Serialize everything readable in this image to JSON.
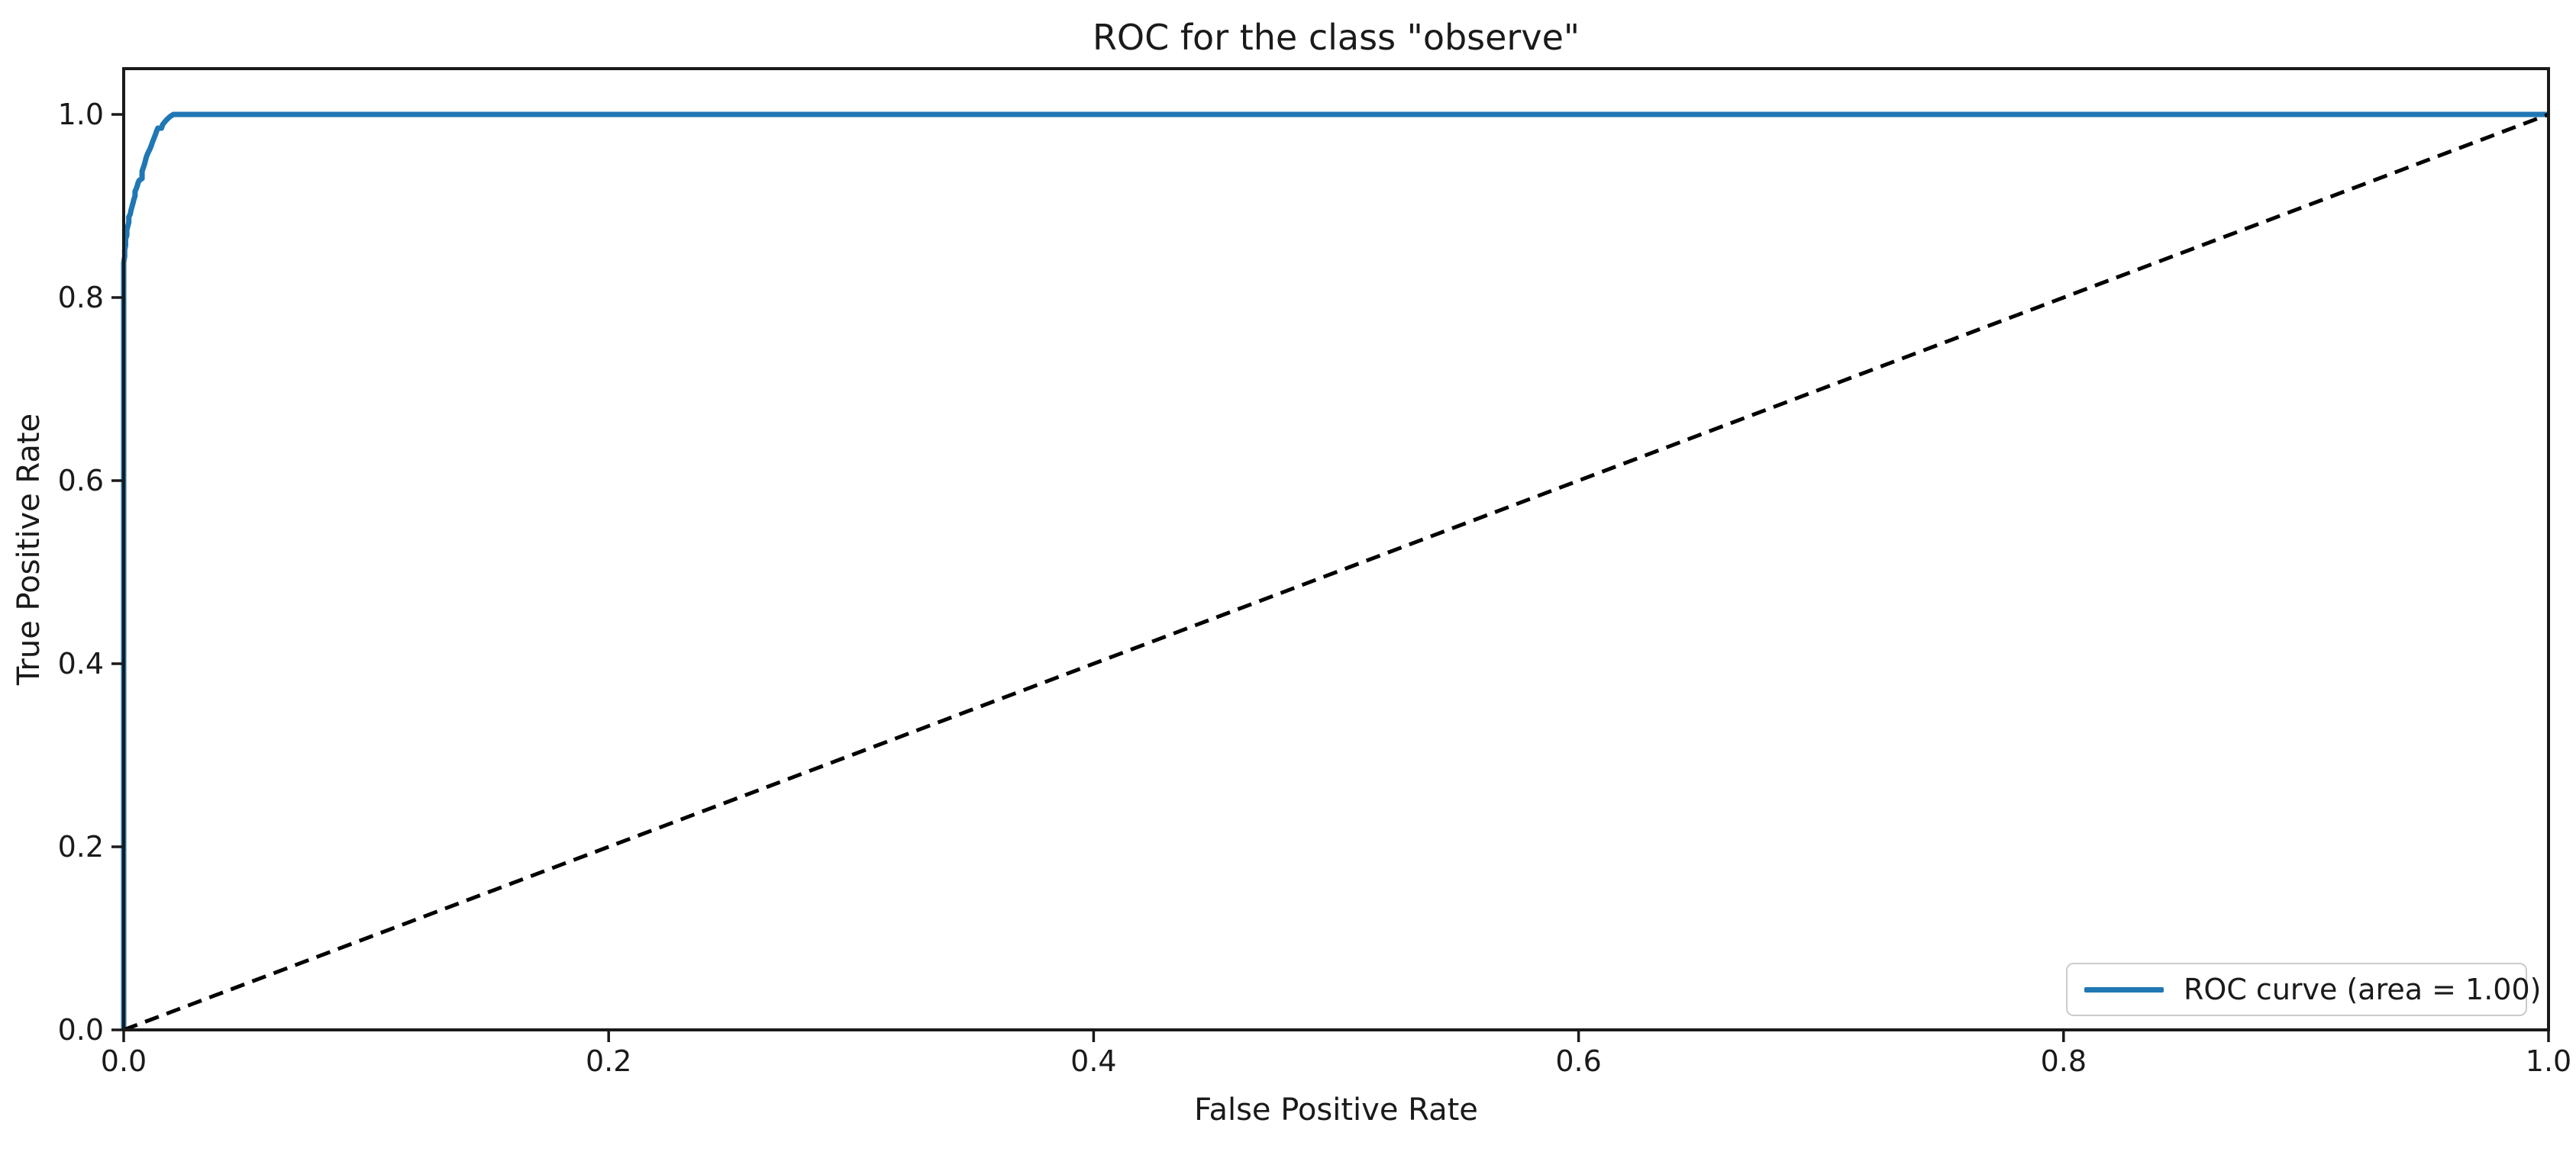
{
  "figure": {
    "background": "#ffffff",
    "text_color": "#1a1a1a",
    "spine_color": "#1a1a1a"
  },
  "chart_data": {
    "type": "line",
    "title": "ROC for the class \"observe\"",
    "xlabel": "False Positive Rate",
    "ylabel": "True Positive Rate",
    "xlim": [
      0.0,
      1.0
    ],
    "ylim": [
      0.0,
      1.05
    ],
    "xtick_labels": [
      "0.0",
      "0.2",
      "0.4",
      "0.6",
      "0.8",
      "1.0"
    ],
    "ytick_labels": [
      "0.0",
      "0.2",
      "0.4",
      "0.6",
      "0.8",
      "1.0"
    ],
    "grid": false,
    "legend": {
      "position": "lower right",
      "entries": [
        {
          "label": "ROC curve (area = 1.00)",
          "color": "#1f77b4",
          "line_style": "solid"
        }
      ]
    },
    "series": [
      {
        "id": "roc-curve",
        "name": "ROC curve",
        "auc": 1.0,
        "color": "#1f77b4",
        "line_style": "solid",
        "line_width": 7,
        "points": [
          [
            0.0,
            0.0
          ],
          [
            0.0,
            0.838
          ],
          [
            0.0004,
            0.845
          ],
          [
            0.0004,
            0.852
          ],
          [
            0.0008,
            0.857
          ],
          [
            0.0008,
            0.864
          ],
          [
            0.0013,
            0.868
          ],
          [
            0.0013,
            0.874
          ],
          [
            0.0017,
            0.878
          ],
          [
            0.0021,
            0.882
          ],
          [
            0.0021,
            0.888
          ],
          [
            0.0027,
            0.891
          ],
          [
            0.003,
            0.895
          ],
          [
            0.0034,
            0.899
          ],
          [
            0.0038,
            0.903
          ],
          [
            0.0042,
            0.907
          ],
          [
            0.0047,
            0.911
          ],
          [
            0.0047,
            0.916
          ],
          [
            0.0052,
            0.919
          ],
          [
            0.0056,
            0.922
          ],
          [
            0.0059,
            0.925
          ],
          [
            0.0064,
            0.928
          ],
          [
            0.0076,
            0.93
          ],
          [
            0.0076,
            0.938
          ],
          [
            0.008,
            0.941
          ],
          [
            0.0085,
            0.945
          ],
          [
            0.0089,
            0.949
          ],
          [
            0.0093,
            0.953
          ],
          [
            0.0097,
            0.956
          ],
          [
            0.0102,
            0.959
          ],
          [
            0.0108,
            0.962
          ],
          [
            0.0114,
            0.966
          ],
          [
            0.0119,
            0.97
          ],
          [
            0.0125,
            0.974
          ],
          [
            0.0131,
            0.978
          ],
          [
            0.0136,
            0.982
          ],
          [
            0.0141,
            0.985
          ],
          [
            0.0156,
            0.985
          ],
          [
            0.0161,
            0.989
          ],
          [
            0.017,
            0.992
          ],
          [
            0.018,
            0.995
          ],
          [
            0.0193,
            0.998
          ],
          [
            0.0205,
            1.0
          ],
          [
            1.0,
            1.0
          ]
        ]
      },
      {
        "id": "chance-diagonal",
        "name": "Chance diagonal",
        "color": "#000000",
        "line_style": "dashed",
        "line_width": 5,
        "points": [
          [
            0.0,
            0.0
          ],
          [
            1.0,
            1.0
          ]
        ]
      }
    ]
  }
}
